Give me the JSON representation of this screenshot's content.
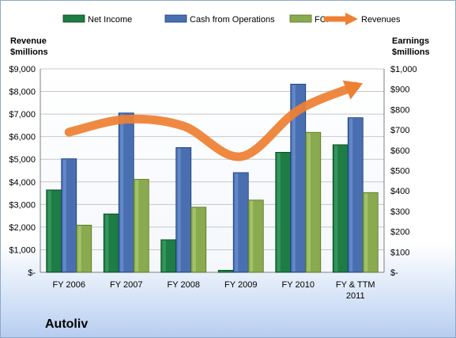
{
  "company_name": "Autoliv",
  "chart_data": {
    "type": "bar",
    "categories": [
      "FY 2006",
      "FY 2007",
      "FY 2008",
      "FY 2009",
      "FY 2010",
      "FY & TTM 2011"
    ],
    "category_lines": [
      [
        "FY 2006"
      ],
      [
        "FY 2007"
      ],
      [
        "FY 2008"
      ],
      [
        "FY 2009"
      ],
      [
        "FY 2010"
      ],
      [
        "FY & TTM",
        "2011"
      ]
    ],
    "series": [
      {
        "name": "Net Income",
        "axis": "right",
        "color": "#1e7c45",
        "values": [
          405,
          287,
          160,
          10,
          590,
          627
        ]
      },
      {
        "name": "Cash from Operations",
        "axis": "right",
        "color": "#4a6fb0",
        "values": [
          558,
          783,
          613,
          490,
          925,
          760
        ]
      },
      {
        "name": "FCF",
        "axis": "right",
        "color": "#8aaa50",
        "values": [
          232,
          457,
          320,
          355,
          688,
          392
        ]
      }
    ],
    "line_series": {
      "name": "Revenues",
      "axis": "left",
      "color": "#ee8033",
      "values": [
        6200,
        6770,
        6470,
        5120,
        7170,
        8230
      ]
    },
    "ylabel_left": [
      "Revenue",
      "$millions"
    ],
    "ylabel_right": [
      "Earnings",
      "$millions"
    ],
    "y_left_ticks": [
      "$9,000",
      "$8,000",
      "$7,000",
      "$6,000",
      "$5,000",
      "$4,000",
      "$3,000",
      "$2,000",
      "$1,000",
      "$-"
    ],
    "y_right_ticks": [
      "$1,000",
      "$900",
      "$800",
      "$700",
      "$600",
      "$500",
      "$400",
      "$300",
      "$200",
      "$100",
      "$-"
    ],
    "ylim_left": [
      0,
      9000
    ],
    "ylim_right": [
      0,
      1000
    ],
    "grid": true,
    "legend_position": "top"
  }
}
